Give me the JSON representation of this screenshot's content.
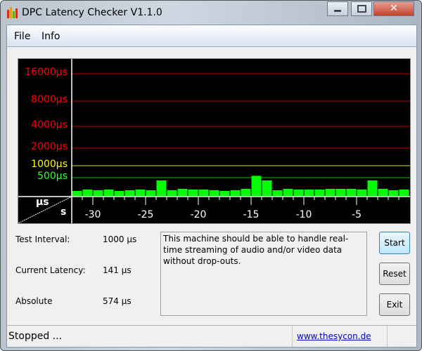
{
  "window": {
    "title": "DPC Latency Checker V1.1.0"
  },
  "menu": {
    "items": [
      {
        "label": "File"
      },
      {
        "label": "Info"
      }
    ]
  },
  "chart_data": {
    "type": "bar",
    "y_levels": [
      {
        "label": "16000µs",
        "value": 16000,
        "color": "#ff0000"
      },
      {
        "label": "8000µs",
        "value": 8000,
        "color": "#ff0000"
      },
      {
        "label": "4000µs",
        "value": 4000,
        "color": "#ff0000"
      },
      {
        "label": "2000µs",
        "value": 2000,
        "color": "#ff0000"
      },
      {
        "label": "1000µs",
        "value": 1000,
        "color": "#ffff00"
      },
      {
        "label": "500µs",
        "value": 500,
        "color": "#33ff33"
      }
    ],
    "y_unit": "µs",
    "x_unit": "s",
    "x_ticks": [
      -30,
      -25,
      -20,
      -15,
      -10,
      -5
    ],
    "xlim": [
      -32,
      0
    ],
    "bar_color": "#00ff00",
    "values": [
      135,
      173,
      154,
      173,
      135,
      154,
      173,
      154,
      423,
      154,
      192,
      173,
      173,
      154,
      135,
      154,
      192,
      574,
      423,
      154,
      192,
      173,
      173,
      173,
      192,
      192,
      192,
      173,
      423,
      192,
      154,
      173
    ]
  },
  "stats": {
    "test_interval_label": "Test Interval:",
    "test_interval_value": "1000 µs",
    "current_latency_label": "Current Latency:",
    "current_latency_value": "141 µs",
    "absolute_label": "Absolute",
    "absolute_value": "574 µs"
  },
  "message": "This machine should be able to handle real-time streaming of audio and/or video data without drop-outs.",
  "buttons": {
    "start": "Start",
    "reset": "Reset",
    "exit": "Exit"
  },
  "status": {
    "text": "Stopped ...",
    "link": "www.thesycon.de"
  }
}
